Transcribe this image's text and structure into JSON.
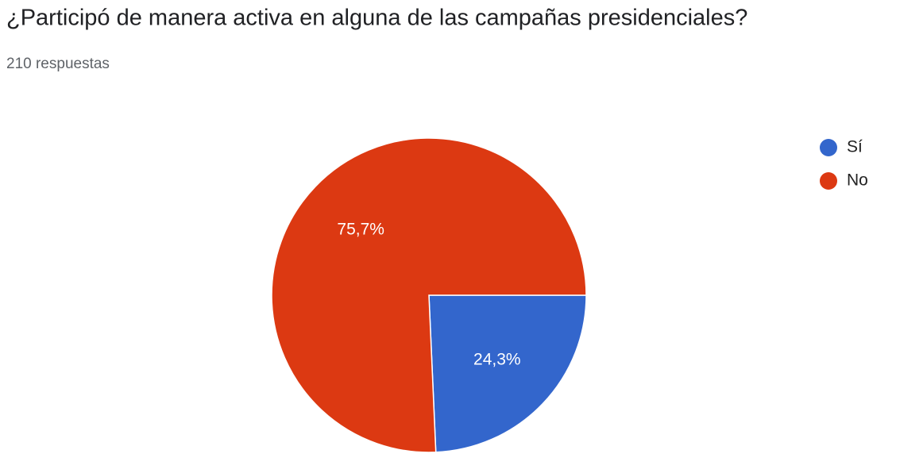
{
  "chart_data": {
    "type": "pie",
    "title": "¿Participó de manera activa en alguna de las campañas presidenciales?",
    "subtitle": "210 respuestas",
    "categories": [
      "Sí",
      "No"
    ],
    "values": [
      24.3,
      75.7
    ],
    "value_labels": [
      "24,3%",
      "75,7%"
    ],
    "colors": [
      "#3366cc",
      "#dc3912"
    ],
    "legend": "right"
  }
}
